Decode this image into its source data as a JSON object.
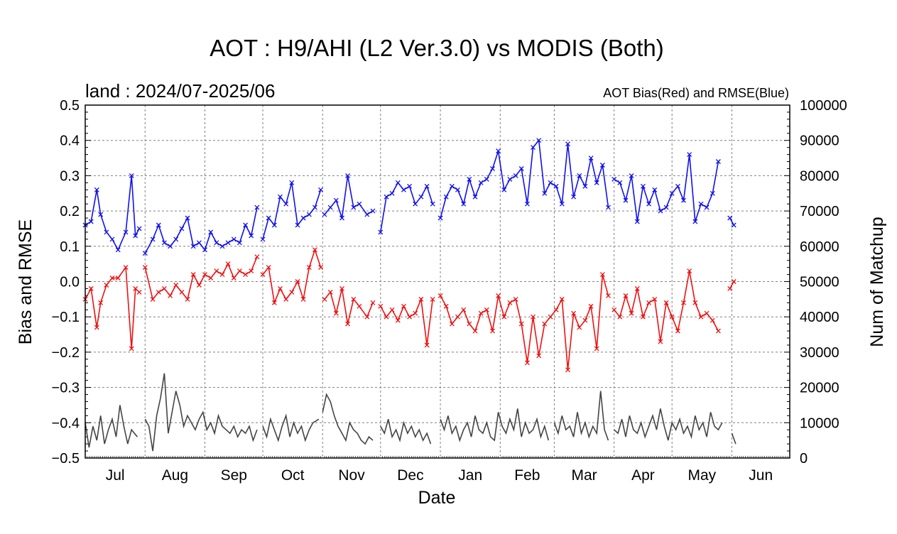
{
  "chart_data": {
    "type": "line",
    "title": "AOT : H9/AHI (L2 Ver.3.0) vs MODIS (Both)",
    "subtitle": "land  :  2024/07-2025/06",
    "legend_note": "AOT Bias(Red) and RMSE(Blue)",
    "xlabel": "Date",
    "ylabel_left": "Bias and RMSE",
    "ylabel_right": "Num of Matchup",
    "ylim_left": [
      -0.5,
      0.5
    ],
    "ylim_right": [
      0,
      100000
    ],
    "yticks_left": [
      "0.5",
      "0.4",
      "0.3",
      "0.2",
      "0.1",
      "0.0",
      "−0.1",
      "−0.2",
      "−0.3",
      "−0.4",
      "−0.5"
    ],
    "yticks_right": [
      "100000",
      "90000",
      "80000",
      "70000",
      "60000",
      "50000",
      "40000",
      "30000",
      "20000",
      "10000",
      "0"
    ],
    "months": [
      "Jul",
      "Aug",
      "Sep",
      "Oct",
      "Nov",
      "Dec",
      "Jan",
      "Feb",
      "Mar",
      "Apr",
      "May",
      "Jun"
    ],
    "x_start": "2024-07-01",
    "x_end": "2025-07-01",
    "grid": true,
    "colors": {
      "bias": "#ee1111",
      "rmse": "#1111ee",
      "count": "#444444"
    },
    "series": [
      {
        "name": "RMSE",
        "axis": "left",
        "x": [
          "2024-07-01",
          "2024-07-04",
          "2024-07-07",
          "2024-07-09",
          "2024-07-12",
          "2024-07-15",
          "2024-07-18",
          "2024-07-22",
          "2024-07-25",
          "2024-07-27",
          "2024-07-29",
          null,
          "2024-08-01",
          "2024-08-05",
          "2024-08-08",
          "2024-08-11",
          "2024-08-14",
          "2024-08-17",
          "2024-08-20",
          "2024-08-23",
          "2024-08-26",
          "2024-08-29",
          "2024-09-01",
          "2024-09-04",
          "2024-09-07",
          "2024-09-10",
          "2024-09-13",
          "2024-09-16",
          "2024-09-19",
          "2024-09-22",
          "2024-09-25",
          "2024-09-28",
          null,
          "2024-10-01",
          "2024-10-04",
          "2024-10-07",
          "2024-10-10",
          "2024-10-13",
          "2024-10-16",
          "2024-10-19",
          "2024-10-22",
          "2024-10-25",
          "2024-10-28",
          "2024-10-31",
          null,
          "2024-11-02",
          "2024-11-05",
          "2024-11-08",
          "2024-11-11",
          "2024-11-14",
          "2024-11-17",
          "2024-11-20",
          "2024-11-24",
          "2024-11-27",
          null,
          "2024-12-01",
          "2024-12-04",
          "2024-12-07",
          "2024-12-10",
          "2024-12-13",
          "2024-12-16",
          "2024-12-19",
          "2024-12-22",
          "2024-12-25",
          "2024-12-28",
          null,
          "2025-01-01",
          "2025-01-04",
          "2025-01-07",
          "2025-01-10",
          "2025-01-13",
          "2025-01-16",
          "2025-01-19",
          "2025-01-22",
          "2025-01-25",
          "2025-01-28",
          "2025-01-31",
          "2025-02-03",
          "2025-02-06",
          "2025-02-09",
          "2025-02-12",
          "2025-02-15",
          "2025-02-18",
          "2025-02-21",
          "2025-02-24",
          "2025-02-27",
          "2025-03-02",
          "2025-03-05",
          "2025-03-08",
          "2025-03-11",
          "2025-03-14",
          "2025-03-17",
          "2025-03-20",
          "2025-03-23",
          "2025-03-26",
          "2025-03-29",
          null,
          "2025-04-01",
          "2025-04-04",
          "2025-04-07",
          "2025-04-10",
          "2025-04-13",
          "2025-04-16",
          "2025-04-19",
          "2025-04-22",
          "2025-04-25",
          "2025-04-28",
          "2025-05-01",
          "2025-05-04",
          "2025-05-07",
          "2025-05-10",
          "2025-05-13",
          "2025-05-16",
          "2025-05-19",
          "2025-05-22",
          "2025-05-25",
          "2025-05-28",
          "2025-05-31",
          "2025-06-02"
        ],
        "values": [
          0.16,
          0.17,
          0.26,
          0.19,
          0.14,
          0.12,
          0.09,
          0.14,
          0.3,
          0.13,
          0.15,
          null,
          0.08,
          0.12,
          0.16,
          0.11,
          0.1,
          0.12,
          0.15,
          0.18,
          0.1,
          0.11,
          0.09,
          0.14,
          0.11,
          0.1,
          0.11,
          0.12,
          0.11,
          0.16,
          0.13,
          0.21,
          null,
          0.12,
          0.18,
          0.16,
          0.24,
          0.22,
          0.28,
          0.16,
          0.18,
          0.19,
          0.21,
          0.26,
          null,
          0.19,
          0.21,
          0.23,
          0.18,
          0.3,
          0.21,
          0.22,
          0.19,
          0.2,
          null,
          0.14,
          0.24,
          0.25,
          0.28,
          0.26,
          0.27,
          0.22,
          0.24,
          0.27,
          0.22,
          null,
          0.18,
          0.24,
          0.27,
          0.26,
          0.22,
          0.29,
          0.24,
          0.28,
          0.29,
          0.32,
          0.37,
          0.26,
          0.29,
          0.3,
          0.32,
          0.22,
          0.38,
          0.4,
          0.25,
          0.28,
          0.27,
          0.22,
          0.39,
          0.24,
          0.3,
          0.27,
          0.35,
          0.28,
          0.33,
          0.21,
          null,
          0.29,
          0.28,
          0.23,
          0.3,
          0.17,
          0.27,
          0.22,
          0.26,
          0.2,
          0.21,
          0.25,
          0.27,
          0.23,
          0.36,
          0.17,
          0.22,
          0.21,
          0.25,
          0.34,
          null,
          0.18,
          0.16
        ],
        "marker": "x"
      },
      {
        "name": "Bias",
        "axis": "left",
        "x": [
          "2024-07-01",
          "2024-07-04",
          "2024-07-07",
          "2024-07-09",
          "2024-07-12",
          "2024-07-15",
          "2024-07-18",
          "2024-07-22",
          "2024-07-25",
          "2024-07-27",
          "2024-07-29",
          null,
          "2024-08-01",
          "2024-08-05",
          "2024-08-08",
          "2024-08-11",
          "2024-08-14",
          "2024-08-17",
          "2024-08-20",
          "2024-08-23",
          "2024-08-26",
          "2024-08-29",
          "2024-09-01",
          "2024-09-04",
          "2024-09-07",
          "2024-09-10",
          "2024-09-13",
          "2024-09-16",
          "2024-09-19",
          "2024-09-22",
          "2024-09-25",
          "2024-09-28",
          null,
          "2024-10-01",
          "2024-10-04",
          "2024-10-07",
          "2024-10-10",
          "2024-10-13",
          "2024-10-16",
          "2024-10-19",
          "2024-10-22",
          "2024-10-25",
          "2024-10-28",
          "2024-10-31",
          null,
          "2024-11-02",
          "2024-11-05",
          "2024-11-08",
          "2024-11-11",
          "2024-11-14",
          "2024-11-17",
          "2024-11-20",
          "2024-11-24",
          "2024-11-27",
          null,
          "2024-12-01",
          "2024-12-04",
          "2024-12-07",
          "2024-12-10",
          "2024-12-13",
          "2024-12-16",
          "2024-12-19",
          "2024-12-22",
          "2024-12-25",
          "2024-12-28",
          null,
          "2025-01-01",
          "2025-01-04",
          "2025-01-07",
          "2025-01-10",
          "2025-01-13",
          "2025-01-16",
          "2025-01-19",
          "2025-01-22",
          "2025-01-25",
          "2025-01-28",
          "2025-01-31",
          "2025-02-03",
          "2025-02-06",
          "2025-02-09",
          "2025-02-12",
          "2025-02-15",
          "2025-02-18",
          "2025-02-21",
          "2025-02-24",
          "2025-02-27",
          "2025-03-02",
          "2025-03-05",
          "2025-03-08",
          "2025-03-11",
          "2025-03-14",
          "2025-03-17",
          "2025-03-20",
          "2025-03-23",
          "2025-03-26",
          "2025-03-29",
          null,
          "2025-04-01",
          "2025-04-04",
          "2025-04-07",
          "2025-04-10",
          "2025-04-13",
          "2025-04-16",
          "2025-04-19",
          "2025-04-22",
          "2025-04-25",
          "2025-04-28",
          "2025-05-01",
          "2025-05-04",
          "2025-05-07",
          "2025-05-10",
          "2025-05-13",
          "2025-05-16",
          "2025-05-19",
          "2025-05-22",
          "2025-05-25",
          "2025-05-28",
          "2025-05-31",
          "2025-06-02"
        ],
        "values": [
          -0.05,
          -0.02,
          -0.13,
          -0.06,
          -0.01,
          0.01,
          0.01,
          0.04,
          -0.19,
          -0.02,
          -0.03,
          null,
          0.04,
          -0.05,
          -0.03,
          -0.02,
          -0.04,
          -0.01,
          -0.03,
          -0.05,
          0.02,
          -0.01,
          0.02,
          0.01,
          0.03,
          0.02,
          0.05,
          0.01,
          0.03,
          0.02,
          0.03,
          0.07,
          null,
          0.02,
          0.04,
          -0.06,
          -0.02,
          -0.05,
          -0.03,
          0.0,
          -0.05,
          0.04,
          0.09,
          0.04,
          null,
          -0.05,
          -0.03,
          -0.09,
          -0.02,
          -0.12,
          -0.05,
          -0.07,
          -0.1,
          -0.06,
          null,
          -0.07,
          -0.1,
          -0.08,
          -0.11,
          -0.07,
          -0.1,
          -0.09,
          -0.05,
          -0.18,
          -0.05,
          null,
          -0.04,
          -0.07,
          -0.12,
          -0.1,
          -0.08,
          -0.12,
          -0.14,
          -0.09,
          -0.08,
          -0.14,
          -0.04,
          -0.1,
          -0.06,
          -0.05,
          -0.12,
          -0.23,
          -0.1,
          -0.21,
          -0.12,
          -0.1,
          -0.08,
          -0.05,
          -0.25,
          -0.09,
          -0.13,
          -0.11,
          -0.07,
          -0.19,
          0.02,
          -0.04,
          null,
          -0.08,
          -0.1,
          -0.04,
          -0.09,
          -0.02,
          -0.1,
          -0.06,
          -0.05,
          -0.17,
          -0.06,
          -0.1,
          -0.14,
          -0.06,
          0.03,
          -0.06,
          -0.1,
          -0.09,
          -0.11,
          -0.14,
          null,
          -0.02,
          0.0
        ],
        "marker": "x"
      },
      {
        "name": "Num of Matchup",
        "axis": "right",
        "x": [
          "2024-07-01",
          "2024-07-03",
          "2024-07-05",
          "2024-07-07",
          "2024-07-09",
          "2024-07-11",
          "2024-07-13",
          "2024-07-15",
          "2024-07-17",
          "2024-07-19",
          "2024-07-21",
          "2024-07-23",
          "2024-07-25",
          "2024-07-28",
          null,
          "2024-08-01",
          "2024-08-03",
          "2024-08-05",
          "2024-08-07",
          "2024-08-09",
          "2024-08-11",
          "2024-08-13",
          "2024-08-15",
          "2024-08-17",
          "2024-08-19",
          "2024-08-21",
          "2024-08-23",
          "2024-08-25",
          "2024-08-27",
          "2024-08-29",
          "2024-08-31",
          "2024-09-02",
          "2024-09-04",
          "2024-09-06",
          "2024-09-08",
          "2024-09-10",
          "2024-09-12",
          "2024-09-14",
          "2024-09-16",
          "2024-09-18",
          "2024-09-20",
          "2024-09-22",
          "2024-09-24",
          "2024-09-26",
          "2024-09-28",
          null,
          "2024-10-01",
          "2024-10-03",
          "2024-10-05",
          "2024-10-07",
          "2024-10-09",
          "2024-10-11",
          "2024-10-13",
          "2024-10-15",
          "2024-10-17",
          "2024-10-19",
          "2024-10-21",
          "2024-10-23",
          "2024-10-25",
          "2024-10-27",
          "2024-10-30",
          null,
          "2024-11-01",
          "2024-11-03",
          "2024-11-05",
          "2024-11-07",
          "2024-11-09",
          "2024-11-11",
          "2024-11-13",
          "2024-11-15",
          "2024-11-17",
          "2024-11-19",
          "2024-11-21",
          "2024-11-23",
          "2024-11-25",
          "2024-11-27",
          null,
          "2024-12-01",
          "2024-12-03",
          "2024-12-05",
          "2024-12-07",
          "2024-12-09",
          "2024-12-11",
          "2024-12-13",
          "2024-12-15",
          "2024-12-17",
          "2024-12-19",
          "2024-12-21",
          "2024-12-23",
          "2024-12-25",
          "2024-12-27",
          null,
          "2025-01-01",
          "2025-01-03",
          "2025-01-05",
          "2025-01-07",
          "2025-01-09",
          "2025-01-11",
          "2025-01-13",
          "2025-01-15",
          "2025-01-17",
          "2025-01-19",
          "2025-01-21",
          "2025-01-23",
          "2025-01-25",
          "2025-01-27",
          "2025-01-29",
          "2025-01-31",
          "2025-02-02",
          "2025-02-04",
          "2025-02-06",
          "2025-02-08",
          "2025-02-10",
          "2025-02-12",
          "2025-02-14",
          "2025-02-16",
          "2025-02-18",
          "2025-02-20",
          "2025-02-22",
          "2025-02-24",
          "2025-02-26",
          null,
          "2025-03-01",
          "2025-03-03",
          "2025-03-05",
          "2025-03-07",
          "2025-03-09",
          "2025-03-11",
          "2025-03-13",
          "2025-03-15",
          "2025-03-17",
          "2025-03-19",
          "2025-03-21",
          "2025-03-23",
          "2025-03-25",
          "2025-03-27",
          "2025-03-29",
          null,
          "2025-04-01",
          "2025-04-03",
          "2025-04-05",
          "2025-04-07",
          "2025-04-09",
          "2025-04-11",
          "2025-04-13",
          "2025-04-15",
          "2025-04-17",
          "2025-04-19",
          "2025-04-21",
          "2025-04-23",
          "2025-04-25",
          "2025-04-27",
          "2025-04-29",
          "2025-05-01",
          "2025-05-03",
          "2025-05-05",
          "2025-05-07",
          "2025-05-09",
          "2025-05-11",
          "2025-05-13",
          "2025-05-15",
          "2025-05-17",
          "2025-05-19",
          "2025-05-21",
          "2025-05-23",
          "2025-05-25",
          "2025-05-27",
          null,
          "2025-06-01",
          "2025-06-03"
        ],
        "values": [
          10000,
          3000,
          9000,
          5000,
          12000,
          4000,
          8000,
          11000,
          6000,
          15000,
          9000,
          4000,
          8000,
          6000,
          null,
          11000,
          9000,
          2000,
          12000,
          17000,
          24000,
          7000,
          13000,
          19000,
          15000,
          9000,
          12000,
          10000,
          8000,
          11000,
          13000,
          8000,
          10000,
          7000,
          12000,
          9000,
          8000,
          7000,
          9000,
          6000,
          8000,
          7000,
          9000,
          5000,
          8000,
          null,
          9000,
          6000,
          11000,
          8000,
          5000,
          9000,
          12000,
          6000,
          10000,
          7000,
          9000,
          5000,
          8000,
          10000,
          11000,
          null,
          13000,
          18000,
          16000,
          12000,
          9000,
          7000,
          5000,
          10000,
          8000,
          7000,
          5000,
          4000,
          6000,
          5000,
          null,
          9000,
          7000,
          11000,
          6000,
          8000,
          5000,
          10000,
          7000,
          9000,
          6000,
          8000,
          5000,
          7000,
          4000,
          null,
          11000,
          8000,
          12000,
          7000,
          9000,
          5000,
          8000,
          10000,
          6000,
          12000,
          8000,
          7000,
          10000,
          6000,
          5000,
          13000,
          9000,
          7000,
          11000,
          8000,
          14000,
          6000,
          10000,
          7000,
          8000,
          11000,
          6000,
          9000,
          5000,
          null,
          10000,
          7000,
          12000,
          8000,
          9000,
          6000,
          13000,
          7000,
          10000,
          6000,
          9000,
          7000,
          19000,
          8000,
          5000,
          null,
          8000,
          7000,
          11000,
          6000,
          12000,
          8000,
          7000,
          10000,
          6000,
          9000,
          12000,
          8000,
          14000,
          9000,
          5000,
          10000,
          8000,
          11000,
          7000,
          9000,
          6000,
          12000,
          8000,
          10000,
          6000,
          13000,
          9000,
          8000,
          10000,
          null,
          7000,
          4000
        ]
      }
    ]
  }
}
